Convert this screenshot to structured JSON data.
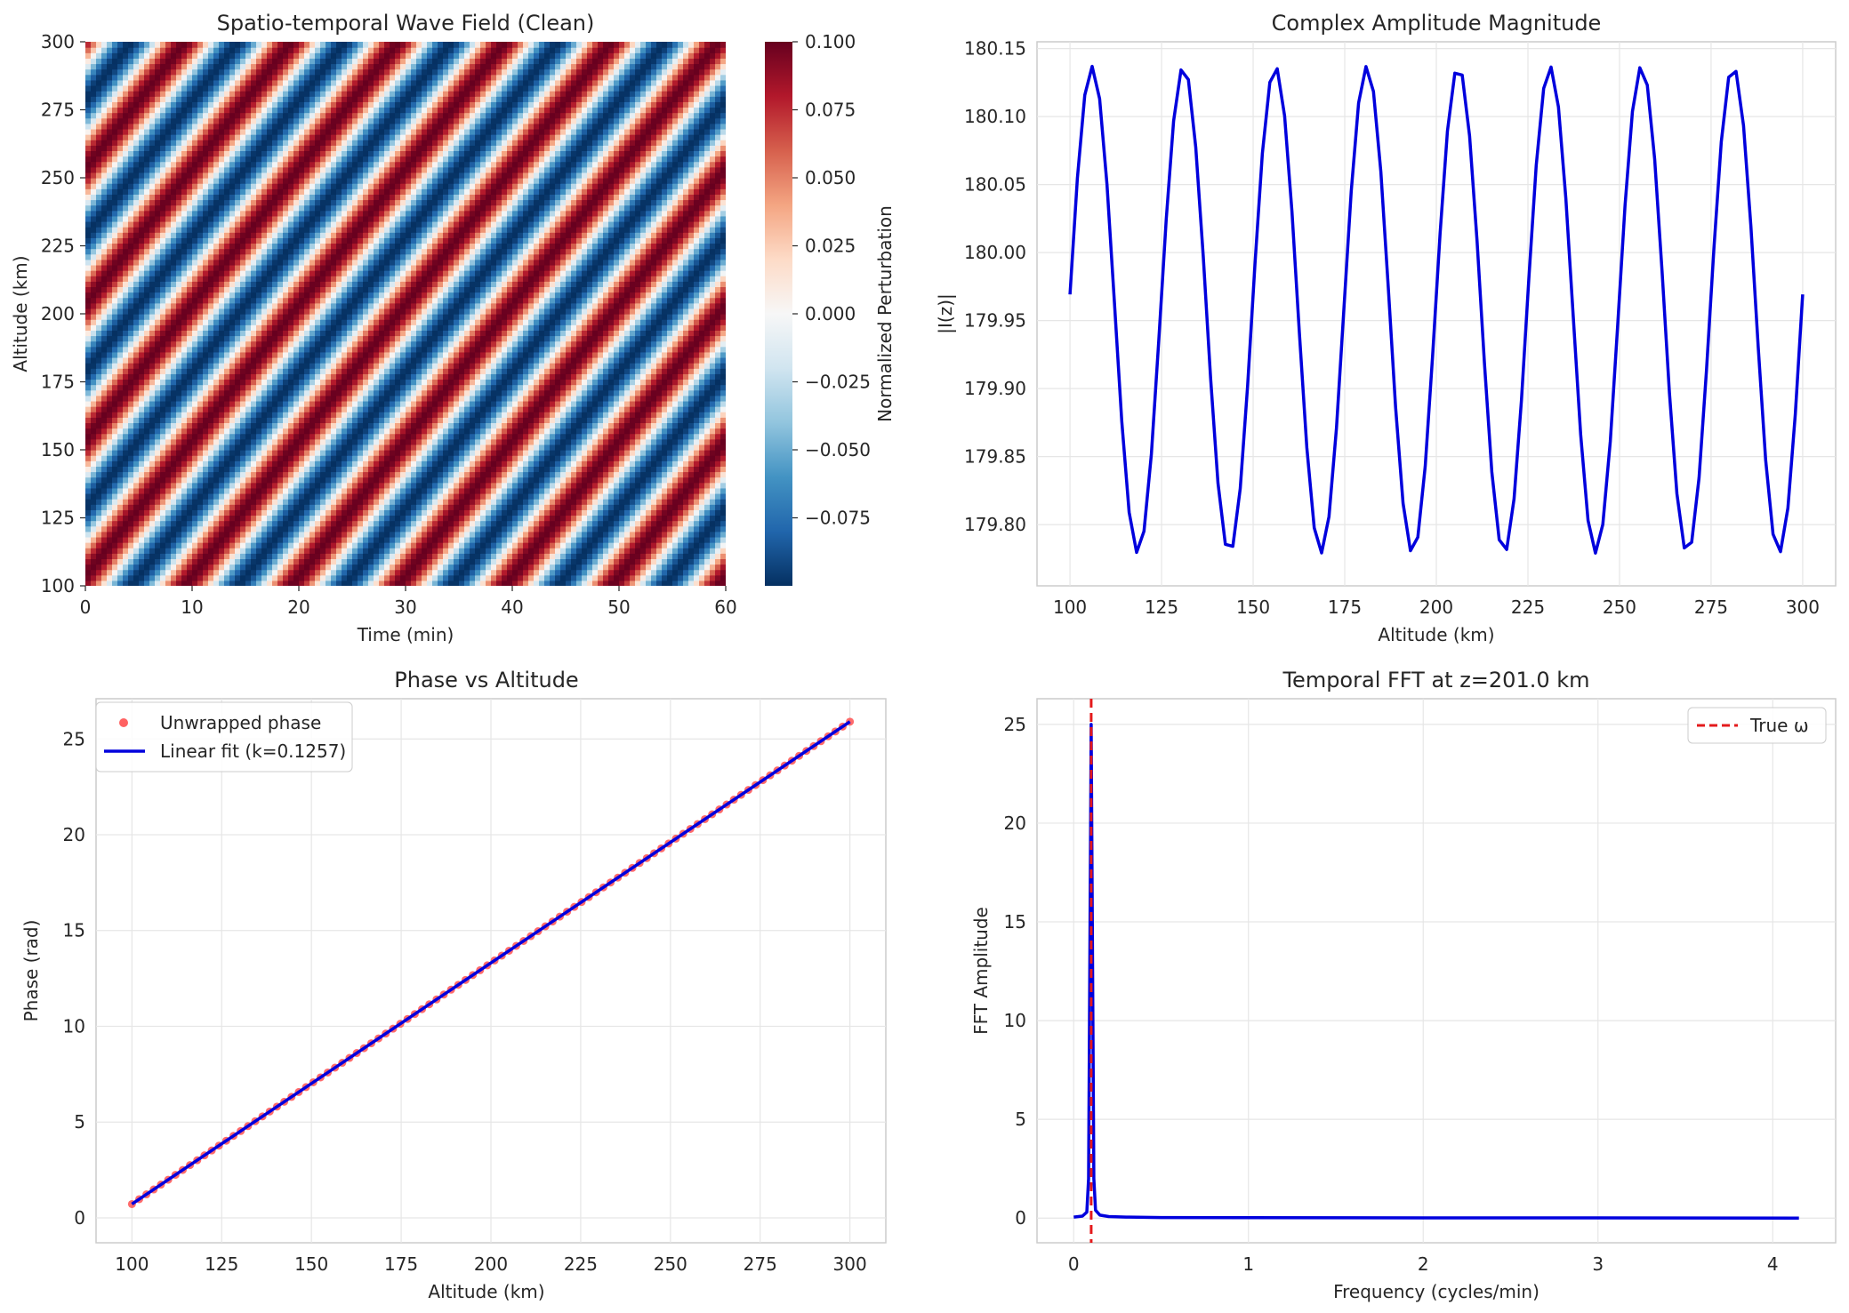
{
  "chart_data": [
    {
      "type": "heatmap",
      "title": "Spatio-temporal Wave Field (Clean)",
      "xlabel": "Time (min)",
      "ylabel": "Altitude (km)",
      "xlim": [
        0,
        60
      ],
      "ylim": [
        100,
        300
      ],
      "xticks": [
        "0",
        "10",
        "20",
        "30",
        "40",
        "50",
        "60"
      ],
      "yticks": [
        "100",
        "125",
        "150",
        "175",
        "200",
        "225",
        "250",
        "275",
        "300"
      ],
      "colorbar": {
        "label": "Normalized Perturbation",
        "range": [
          -0.1,
          0.1
        ],
        "ticks": [
          "0.100",
          "0.075",
          "0.050",
          "0.025",
          "0.000",
          "−0.025",
          "−0.050",
          "−0.075"
        ],
        "colormap": "RdBu_r",
        "colors": [
          "#053061",
          "#2166ac",
          "#4393c3",
          "#92c5de",
          "#d1e5f0",
          "#f7f7f7",
          "#fddbc7",
          "#f4a582",
          "#d6604d",
          "#b2182b",
          "#67001f"
        ]
      },
      "wave": {
        "amplitude": 0.1,
        "vertical_wavenumber_rad_per_km": 0.1257,
        "frequency_cycles_per_min": 0.1
      },
      "grid": false
    },
    {
      "type": "line",
      "title": "Complex Amplitude Magnitude",
      "xlabel": "Altitude (km)",
      "ylabel": "|I(z)|",
      "xlim": [
        100,
        300
      ],
      "ylim": [
        179.78,
        180.14
      ],
      "xticks": [
        "100",
        "125",
        "150",
        "175",
        "200",
        "225",
        "250",
        "275",
        "300"
      ],
      "yticks": [
        "179.80",
        "179.85",
        "179.90",
        "179.95",
        "180.00",
        "180.05",
        "180.10",
        "180.15"
      ],
      "series": [
        {
          "color": "#0000dd",
          "mean": 179.958,
          "amplitude": 0.179,
          "period_km": 25,
          "phase_peak_km": 106,
          "x_start": 100,
          "x_end": 300,
          "n_points": 100
        }
      ],
      "grid": true
    },
    {
      "type": "scatter",
      "title": "Phase vs Altitude",
      "xlabel": "Altitude (km)",
      "ylabel": "Phase (rad)",
      "xlim": [
        100,
        300
      ],
      "ylim": [
        0,
        26
      ],
      "xticks": [
        "100",
        "125",
        "150",
        "175",
        "200",
        "225",
        "250",
        "275",
        "300"
      ],
      "yticks": [
        "0",
        "5",
        "10",
        "15",
        "20",
        "25"
      ],
      "legend": {
        "position": "top-left",
        "entries": [
          "Unwrapped phase",
          "Linear fit (k=0.1257)"
        ]
      },
      "series": [
        {
          "name": "Unwrapped phase",
          "kind": "scatter",
          "color": "#ff3b3b",
          "x_start": 100,
          "x_end": 300,
          "n_points": 100,
          "y_start": 0.72,
          "y_end": 25.9
        },
        {
          "name": "Linear fit (k=0.1257)",
          "kind": "line",
          "color": "#0000dd",
          "x": [
            100,
            300
          ],
          "y": [
            0.72,
            25.9
          ]
        }
      ],
      "grid": true
    },
    {
      "type": "line",
      "title": "Temporal FFT at z=201.0 km",
      "xlabel": "Frequency (cycles/min)",
      "ylabel": "FFT Amplitude",
      "xlim": [
        0,
        4.15
      ],
      "ylim": [
        0,
        25
      ],
      "xticks": [
        "0",
        "1",
        "2",
        "3",
        "4"
      ],
      "yticks": [
        "0",
        "5",
        "10",
        "15",
        "20",
        "25"
      ],
      "legend": {
        "position": "top-right",
        "entries": [
          "True ω"
        ]
      },
      "series": [
        {
          "color": "#0000dd",
          "x": [
            0.0,
            0.05,
            0.075,
            0.085,
            0.1,
            0.115,
            0.125,
            0.15,
            0.2,
            0.3,
            0.5,
            1.0,
            2.0,
            3.0,
            4.15
          ],
          "y": [
            0.05,
            0.1,
            0.3,
            2.0,
            25.0,
            2.0,
            0.4,
            0.15,
            0.08,
            0.05,
            0.03,
            0.02,
            0.01,
            0.01,
            0.0
          ]
        },
        {
          "name": "True ω",
          "kind": "vline",
          "color": "#e41a1c",
          "x": 0.1,
          "dashed": true
        }
      ],
      "grid": true
    }
  ]
}
